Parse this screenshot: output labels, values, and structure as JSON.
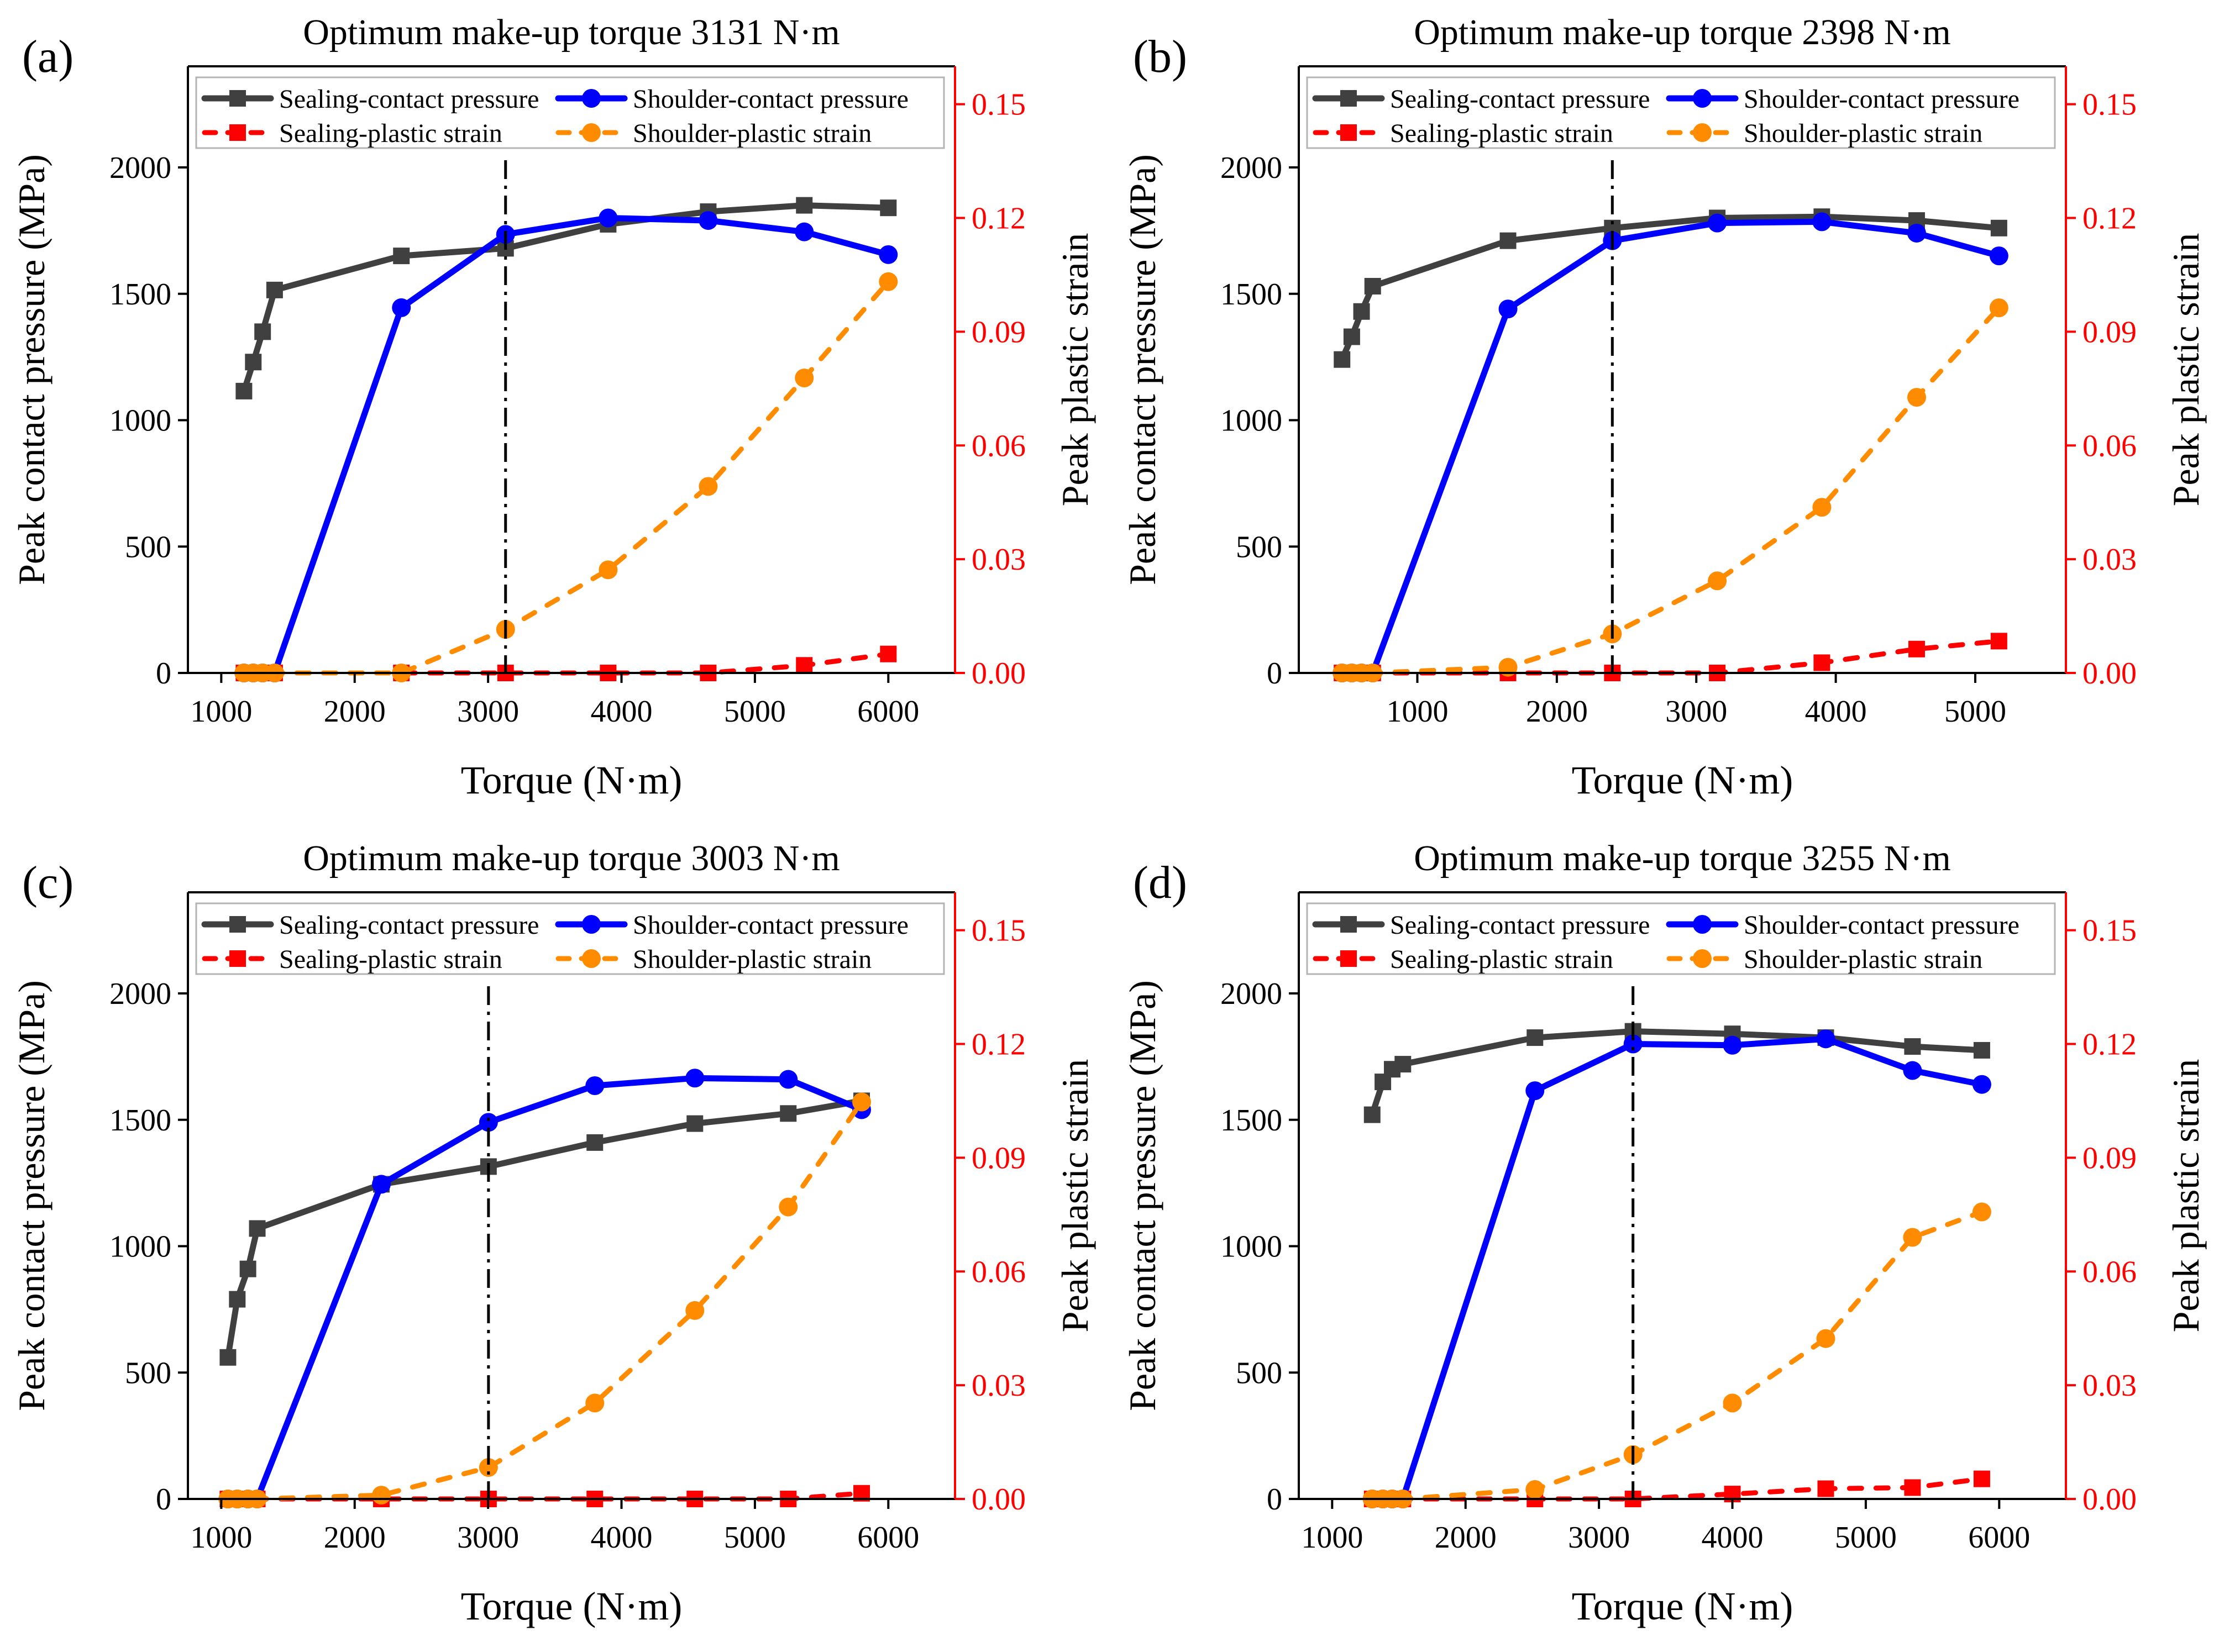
{
  "figure": {
    "colors": {
      "sealing_pressure": "#404040",
      "shoulder_pressure": "#0000ff",
      "sealing_strain": "#ff0000",
      "shoulder_strain": "#ff8c00",
      "right_axis": "#ff0000",
      "axis": "#000000",
      "optimum_line": "#000000"
    },
    "legend": {
      "sealing_pressure": "Sealing-contact pressure",
      "shoulder_pressure": "Shoulder-contact pressure",
      "sealing_strain": "Sealing-plastic strain",
      "shoulder_strain": "Shoulder-plastic strain"
    }
  },
  "chart_data": [
    {
      "panel_label": "(a)",
      "type": "line",
      "title": "Optimum make-up torque 3131 N·m",
      "optimum_torque": 3131,
      "xlabel": "Torque (N·m)",
      "ylabel": "Peak contact pressure (MPa)",
      "y2label": "Peak plastic strain",
      "xlim": [
        750,
        6500
      ],
      "xticks": [
        1000,
        2000,
        3000,
        4000,
        5000,
        6000
      ],
      "xtick_labels": [
        "1000",
        "2000",
        "3000",
        "4000",
        "5000",
        "6000"
      ],
      "ylim": [
        0,
        2400
      ],
      "yticks": [
        0,
        500,
        1000,
        1500,
        2000
      ],
      "ytick_labels": [
        "0",
        "500",
        "1000",
        "1500",
        "2000"
      ],
      "y2lim": [
        0,
        0.16
      ],
      "y2ticks": [
        0,
        0.03,
        0.06,
        0.09,
        0.12,
        0.15
      ],
      "y2tick_labels": [
        "0.00",
        "0.03",
        "0.06",
        "0.09",
        "0.12",
        "0.15"
      ],
      "series": [
        {
          "name": "Sealing-contact pressure",
          "axis": "left",
          "x": [
            1170,
            1240,
            1310,
            1400,
            2350,
            3131,
            3900,
            4650,
            5370,
            6000
          ],
          "y": [
            1115,
            1230,
            1350,
            1515,
            1650,
            1680,
            1775,
            1825,
            1850,
            1840
          ]
        },
        {
          "name": "Shoulder-contact pressure",
          "axis": "left",
          "x": [
            1170,
            1240,
            1310,
            1400,
            2350,
            3131,
            3900,
            4650,
            5370,
            6000
          ],
          "y": [
            0,
            0,
            0,
            0,
            1445,
            1735,
            1800,
            1790,
            1745,
            1655
          ]
        },
        {
          "name": "Sealing-plastic strain",
          "axis": "right",
          "x": [
            1170,
            1240,
            1310,
            1400,
            2350,
            3131,
            3900,
            4650,
            5370,
            6000
          ],
          "y": [
            0,
            0,
            0,
            0,
            0,
            0,
            0,
            0,
            0.002,
            0.005
          ]
        },
        {
          "name": "Shoulder-plastic strain",
          "axis": "right",
          "x": [
            1170,
            1240,
            1310,
            1400,
            2350,
            3131,
            3900,
            4650,
            5370,
            6000
          ],
          "y": [
            0,
            0,
            0,
            0,
            0,
            0.0115,
            0.0272,
            0.0492,
            0.0778,
            0.1032
          ]
        }
      ]
    },
    {
      "panel_label": "(b)",
      "type": "line",
      "title": "Optimum make-up torque 2398 N·m",
      "optimum_torque": 2398,
      "xlabel": "Torque (N·m)",
      "ylabel": "Peak contact pressure (MPa)",
      "y2label": "Peak plastic strain",
      "xlim": [
        150,
        5650
      ],
      "xticks": [
        1000,
        2000,
        3000,
        4000,
        5000
      ],
      "xtick_labels": [
        "1000",
        "2000",
        "3000",
        "4000",
        "5000"
      ],
      "ylim": [
        0,
        2400
      ],
      "yticks": [
        0,
        500,
        1000,
        1500,
        2000
      ],
      "ytick_labels": [
        "0",
        "500",
        "1000",
        "1500",
        "2000"
      ],
      "y2lim": [
        0,
        0.16
      ],
      "y2ticks": [
        0,
        0.03,
        0.06,
        0.09,
        0.12,
        0.15
      ],
      "y2tick_labels": [
        "0.00",
        "0.03",
        "0.06",
        "0.09",
        "0.12",
        "0.15"
      ],
      "series": [
        {
          "name": "Sealing-contact pressure",
          "axis": "left",
          "x": [
            460,
            530,
            600,
            680,
            1650,
            2398,
            3150,
            3900,
            4580,
            5170
          ],
          "y": [
            1240,
            1330,
            1430,
            1530,
            1710,
            1760,
            1800,
            1805,
            1790,
            1760
          ]
        },
        {
          "name": "Shoulder-contact pressure",
          "axis": "left",
          "x": [
            460,
            530,
            600,
            680,
            1650,
            2398,
            3150,
            3900,
            4580,
            5170
          ],
          "y": [
            0,
            0,
            0,
            0,
            1440,
            1710,
            1780,
            1785,
            1740,
            1650
          ]
        },
        {
          "name": "Sealing-plastic strain",
          "axis": "right",
          "x": [
            460,
            530,
            600,
            680,
            1650,
            2398,
            3150,
            3900,
            4580,
            5170
          ],
          "y": [
            0,
            0,
            0,
            0,
            0,
            0,
            0,
            0.0027,
            0.0063,
            0.0084
          ]
        },
        {
          "name": "Shoulder-plastic strain",
          "axis": "right",
          "x": [
            460,
            530,
            600,
            680,
            1650,
            2398,
            3150,
            3900,
            4580,
            5170
          ],
          "y": [
            0,
            0,
            0,
            0,
            0.0015,
            0.0103,
            0.0243,
            0.0437,
            0.0727,
            0.0963
          ]
        }
      ]
    },
    {
      "panel_label": "(c)",
      "type": "line",
      "title": "Optimum make-up torque 3003 N·m",
      "optimum_torque": 3003,
      "xlabel": "Torque (N·m)",
      "ylabel": "Peak contact pressure (MPa)",
      "y2label": "Peak plastic strain",
      "xlim": [
        750,
        6500
      ],
      "xticks": [
        1000,
        2000,
        3000,
        4000,
        5000,
        6000
      ],
      "xtick_labels": [
        "1000",
        "2000",
        "3000",
        "4000",
        "5000",
        "6000"
      ],
      "ylim": [
        0,
        2400
      ],
      "yticks": [
        0,
        500,
        1000,
        1500,
        2000
      ],
      "ytick_labels": [
        "0",
        "500",
        "1000",
        "1500",
        "2000"
      ],
      "y2lim": [
        0,
        0.16
      ],
      "y2ticks": [
        0,
        0.03,
        0.06,
        0.09,
        0.12,
        0.15
      ],
      "y2tick_labels": [
        "0.00",
        "0.03",
        "0.06",
        "0.09",
        "0.12",
        "0.15"
      ],
      "series": [
        {
          "name": "Sealing-contact pressure",
          "axis": "left",
          "x": [
            1050,
            1120,
            1200,
            1270,
            2200,
            3003,
            3800,
            4550,
            5250,
            5800
          ],
          "y": [
            560,
            790,
            910,
            1070,
            1245,
            1315,
            1410,
            1485,
            1525,
            1575
          ]
        },
        {
          "name": "Shoulder-contact pressure",
          "axis": "left",
          "x": [
            1050,
            1120,
            1200,
            1270,
            2200,
            3003,
            3800,
            4550,
            5250,
            5800
          ],
          "y": [
            0,
            0,
            0,
            0,
            1245,
            1490,
            1635,
            1665,
            1660,
            1540
          ]
        },
        {
          "name": "Sealing-plastic strain",
          "axis": "right",
          "x": [
            1050,
            1120,
            1200,
            1270,
            2200,
            3003,
            3800,
            4550,
            5250,
            5800
          ],
          "y": [
            0,
            0,
            0,
            0,
            0,
            0,
            0,
            0,
            0,
            0.0015
          ]
        },
        {
          "name": "Shoulder-plastic strain",
          "axis": "right",
          "x": [
            1050,
            1120,
            1200,
            1270,
            2200,
            3003,
            3800,
            4550,
            5250,
            5800
          ],
          "y": [
            0,
            0,
            0,
            0,
            0.001,
            0.0083,
            0.0253,
            0.0497,
            0.077,
            0.1047
          ]
        }
      ]
    },
    {
      "panel_label": "(d)",
      "type": "line",
      "title": "Optimum make-up torque 3255 N·m",
      "optimum_torque": 3255,
      "xlabel": "Torque (N·m)",
      "ylabel": "Peak contact pressure (MPa)",
      "y2label": "Peak plastic strain",
      "xlim": [
        750,
        6500
      ],
      "xticks": [
        1000,
        2000,
        3000,
        4000,
        5000,
        6000
      ],
      "xtick_labels": [
        "1000",
        "2000",
        "3000",
        "4000",
        "5000",
        "6000"
      ],
      "ylim": [
        0,
        2400
      ],
      "yticks": [
        0,
        500,
        1000,
        1500,
        2000
      ],
      "ytick_labels": [
        "0",
        "500",
        "1000",
        "1500",
        "2000"
      ],
      "y2lim": [
        0,
        0.16
      ],
      "y2ticks": [
        0,
        0.03,
        0.06,
        0.09,
        0.12,
        0.15
      ],
      "y2tick_labels": [
        "0.00",
        "0.03",
        "0.06",
        "0.09",
        "0.12",
        "0.15"
      ],
      "series": [
        {
          "name": "Sealing-contact pressure",
          "axis": "left",
          "x": [
            1300,
            1380,
            1450,
            1530,
            2520,
            3255,
            4000,
            4700,
            5350,
            5870
          ],
          "y": [
            1520,
            1650,
            1700,
            1720,
            1825,
            1850,
            1840,
            1825,
            1790,
            1775
          ]
        },
        {
          "name": "Shoulder-contact pressure",
          "axis": "left",
          "x": [
            1300,
            1380,
            1450,
            1530,
            2520,
            3255,
            4000,
            4700,
            5350,
            5870
          ],
          "y": [
            0,
            0,
            0,
            0,
            1615,
            1800,
            1795,
            1820,
            1695,
            1640
          ]
        },
        {
          "name": "Sealing-plastic strain",
          "axis": "right",
          "x": [
            1300,
            1380,
            1450,
            1530,
            2520,
            3255,
            4000,
            4700,
            5350,
            5870
          ],
          "y": [
            0,
            0,
            0,
            0,
            0,
            0,
            0.0013,
            0.0027,
            0.003,
            0.0053
          ]
        },
        {
          "name": "Shoulder-plastic strain",
          "axis": "right",
          "x": [
            1300,
            1380,
            1450,
            1530,
            2520,
            3255,
            4000,
            4700,
            5350,
            5870
          ],
          "y": [
            0,
            0,
            0,
            0,
            0.0025,
            0.0117,
            0.0253,
            0.0423,
            0.069,
            0.0757
          ]
        }
      ]
    }
  ]
}
